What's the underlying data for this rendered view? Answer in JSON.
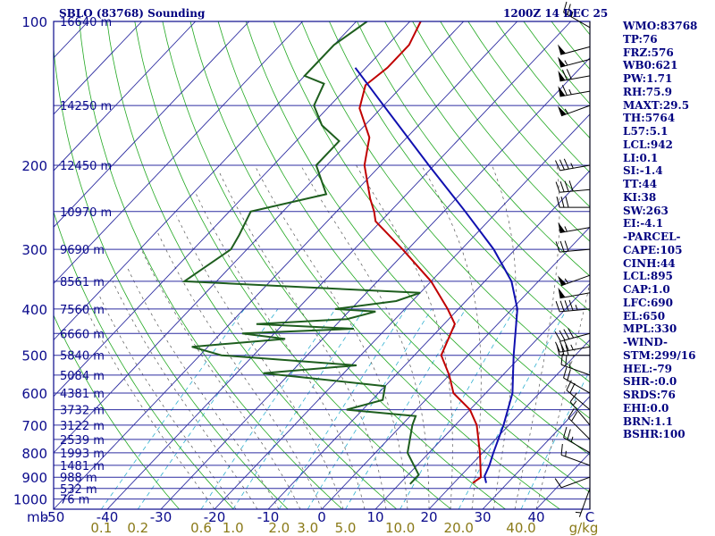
{
  "header": {
    "station": "SBLO (83768) Sounding",
    "time": "1200Z 14 DEC 25"
  },
  "colors": {
    "frame": "#0a0a8c",
    "isotherm": "#2c2ca0",
    "dry_adiabat": "#22a822",
    "moist_adiabat": "#555555",
    "mixing_ratio": "#30b0d0",
    "temperature": "#c00000",
    "dewpoint": "#1e5e1e",
    "parcel": "#1010b0",
    "mixing_label": "#8a7a18",
    "text": "#000080"
  },
  "stats": [
    "WMO:83768",
    "TP:76",
    "FRZ:576",
    "WB0:621",
    "PW:1.71",
    "RH:75.9",
    "MAXT:29.5",
    "TH:5764",
    "L57:5.1",
    "LCL:942",
    "LI:0.1",
    "SI:-1.4",
    "TT:44",
    "KI:38",
    "SW:263",
    "EI:-4.1",
    "-PARCEL-",
    "CAPE:105",
    "CINH:44",
    "LCL:895",
    "CAP:1.0",
    "LFC:690",
    "EL:650",
    "MPL:330",
    "-WIND-",
    "STM:299/16",
    "HEL:-79",
    "SHR-:0.0",
    "SRDS:76",
    "EHI:0.0",
    "BRN:1.1",
    "BSHR:100"
  ],
  "chart_data": {
    "type": "line",
    "title": "SBLO (83768) Sounding",
    "subtitle": "1200Z 14 DEC 25",
    "xlabel": "C",
    "mixing_ratio_unit": "g/kg",
    "ylabel": "mb",
    "xlim": [
      -50,
      50
    ],
    "ylim": [
      1050,
      100
    ],
    "y_scale": "log",
    "grid": true,
    "temperature_ticks": [
      -50,
      -40,
      -30,
      -20,
      -10,
      0,
      10,
      20,
      30,
      40
    ],
    "pressure_ticks": [
      100,
      200,
      300,
      400,
      500,
      600,
      700,
      800,
      900,
      1000
    ],
    "mixing_ratio_labels": [
      "0.1",
      "0.2",
      "0.6",
      "1.0",
      "2.0",
      "3.0",
      "5.0",
      "10.0",
      "20.0",
      "40.0"
    ],
    "mixing_ratio_values": [
      0.1,
      0.2,
      0.6,
      1.0,
      2.0,
      3.0,
      5.0,
      10.0,
      20.0,
      40.0
    ],
    "height_levels": [
      {
        "p": 100,
        "label": "16640 m"
      },
      {
        "p": 150,
        "label": "14250 m"
      },
      {
        "p": 200,
        "label": "12450 m"
      },
      {
        "p": 250,
        "label": "10970 m"
      },
      {
        "p": 300,
        "label": "9690 m"
      },
      {
        "p": 350,
        "label": "8561 m"
      },
      {
        "p": 400,
        "label": "7560 m"
      },
      {
        "p": 450,
        "label": "6660 m"
      },
      {
        "p": 500,
        "label": "5840 m"
      },
      {
        "p": 550,
        "label": "5084 m"
      },
      {
        "p": 600,
        "label": "4381 m"
      },
      {
        "p": 650,
        "label": "3732 m"
      },
      {
        "p": 700,
        "label": "3122 m"
      },
      {
        "p": 750,
        "label": "2539 m"
      },
      {
        "p": 800,
        "label": "1993 m"
      },
      {
        "p": 850,
        "label": "1481 m"
      },
      {
        "p": 900,
        "label": "988 m"
      },
      {
        "p": 950,
        "label": "532 m"
      },
      {
        "p": 1000,
        "label": "76 m"
      }
    ],
    "series": [
      {
        "id": "temperature",
        "p": [
          100,
          112,
          125,
          136,
          152,
          175,
          200,
          235,
          250,
          262,
          300,
          350,
          400,
          430,
          500,
          550,
          600,
          650,
          700,
          800,
          900,
          925
        ],
        "t": [
          -68,
          -66,
          -66,
          -67,
          -64,
          -57,
          -53,
          -46,
          -43,
          -41,
          -31,
          -20,
          -12,
          -8,
          -5,
          0,
          4,
          10,
          14,
          19.5,
          24,
          23.5
        ]
      },
      {
        "id": "dewpoint",
        "p": [
          100,
          112,
          130,
          135,
          150,
          165,
          178,
          200,
          230,
          250,
          280,
          300,
          350,
          370,
          385,
          400,
          405,
          420,
          430,
          440,
          450,
          462,
          480,
          500,
          525,
          545,
          580,
          620,
          650,
          670,
          700,
          800,
          890,
          920,
          930
        ],
        "t": [
          -78,
          -80,
          -80,
          -75,
          -73,
          -68,
          -62,
          -62,
          -55,
          -66,
          -64,
          -63,
          -66,
          -20,
          -23,
          -33,
          -25,
          -29,
          -45,
          -26,
          -46,
          -37,
          -53,
          -46,
          -19,
          -35,
          -10,
          -8,
          -13,
          1,
          2,
          6,
          12,
          12,
          12
        ]
      },
      {
        "id": "parcel",
        "p": [
          925,
          895,
          850,
          800,
          700,
          600,
          500,
          400,
          350,
          300,
          250,
          200,
          150,
          125
        ],
        "t": [
          26,
          24.5,
          23.5,
          22,
          19,
          15,
          8.5,
          1,
          -5,
          -14,
          -26,
          -41,
          -60,
          -72
        ]
      }
    ],
    "wind_barbs": [
      {
        "p": 103,
        "speed_kt": 25,
        "direction_deg": 300
      },
      {
        "p": 113,
        "speed_kt": 50,
        "direction_deg": 255
      },
      {
        "p": 120,
        "speed_kt": 55,
        "direction_deg": 255
      },
      {
        "p": 130,
        "speed_kt": 70,
        "direction_deg": 260
      },
      {
        "p": 140,
        "speed_kt": 65,
        "direction_deg": 260
      },
      {
        "p": 150,
        "speed_kt": 55,
        "direction_deg": 250
      },
      {
        "p": 200,
        "speed_kt": 35,
        "direction_deg": 260
      },
      {
        "p": 225,
        "speed_kt": 40,
        "direction_deg": 265
      },
      {
        "p": 245,
        "speed_kt": 30,
        "direction_deg": 270
      },
      {
        "p": 270,
        "speed_kt": 55,
        "direction_deg": 260
      },
      {
        "p": 300,
        "speed_kt": 30,
        "direction_deg": 265
      },
      {
        "p": 340,
        "speed_kt": 55,
        "direction_deg": 250
      },
      {
        "p": 370,
        "speed_kt": 50,
        "direction_deg": 260
      },
      {
        "p": 400,
        "speed_kt": 45,
        "direction_deg": 265
      },
      {
        "p": 450,
        "speed_kt": 40,
        "direction_deg": 255
      },
      {
        "p": 480,
        "speed_kt": 35,
        "direction_deg": 260
      },
      {
        "p": 500,
        "speed_kt": 30,
        "direction_deg": 270
      },
      {
        "p": 550,
        "speed_kt": 25,
        "direction_deg": 290
      },
      {
        "p": 600,
        "speed_kt": 20,
        "direction_deg": 300
      },
      {
        "p": 650,
        "speed_kt": 20,
        "direction_deg": 310
      },
      {
        "p": 700,
        "speed_kt": 15,
        "direction_deg": 320
      },
      {
        "p": 750,
        "speed_kt": 20,
        "direction_deg": 315
      },
      {
        "p": 800,
        "speed_kt": 25,
        "direction_deg": 300
      },
      {
        "p": 850,
        "speed_kt": 15,
        "direction_deg": 290
      },
      {
        "p": 900,
        "speed_kt": 10,
        "direction_deg": 250
      },
      {
        "p": 950,
        "speed_kt": 5,
        "direction_deg": 200
      }
    ]
  }
}
